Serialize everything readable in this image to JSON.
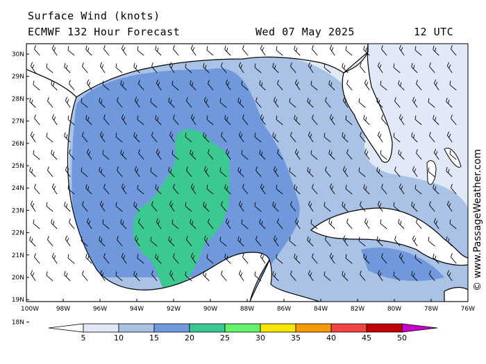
{
  "header": {
    "title": "Surface Wind (knots)",
    "model": "ECMWF 132 Hour Forecast",
    "date": "Wed 07 May 2025",
    "time": "12 UTC"
  },
  "credit": "© www.PassageWeather.com",
  "map": {
    "lat_labels": [
      "30N",
      "29N",
      "28N",
      "27N",
      "26N",
      "25N",
      "24N",
      "23N",
      "22N",
      "21N",
      "20N",
      "19N",
      "18N"
    ],
    "lon_labels": [
      "100W",
      "98W",
      "96W",
      "94W",
      "92W",
      "90W",
      "88W",
      "86W",
      "84W",
      "82W",
      "80W",
      "78W",
      "76W"
    ],
    "colors": {
      "land": "#ffffff",
      "lt5": "#ffffff",
      "b5_10": "#e1e9f6",
      "b10_15": "#a9c2e6",
      "b15_20": "#6f99dc",
      "b20_25": "#3cc991",
      "coast": "#000000"
    }
  },
  "colorbar": {
    "ticks": [
      "5",
      "10",
      "15",
      "20",
      "25",
      "30",
      "35",
      "40",
      "45",
      "50"
    ],
    "colors": [
      "#e1e9f6",
      "#a9c2e6",
      "#6f99dc",
      "#3cc991",
      "#63f26b",
      "#f7e600",
      "#f79a00",
      "#f04444",
      "#c00000",
      "#c800c8"
    ]
  }
}
